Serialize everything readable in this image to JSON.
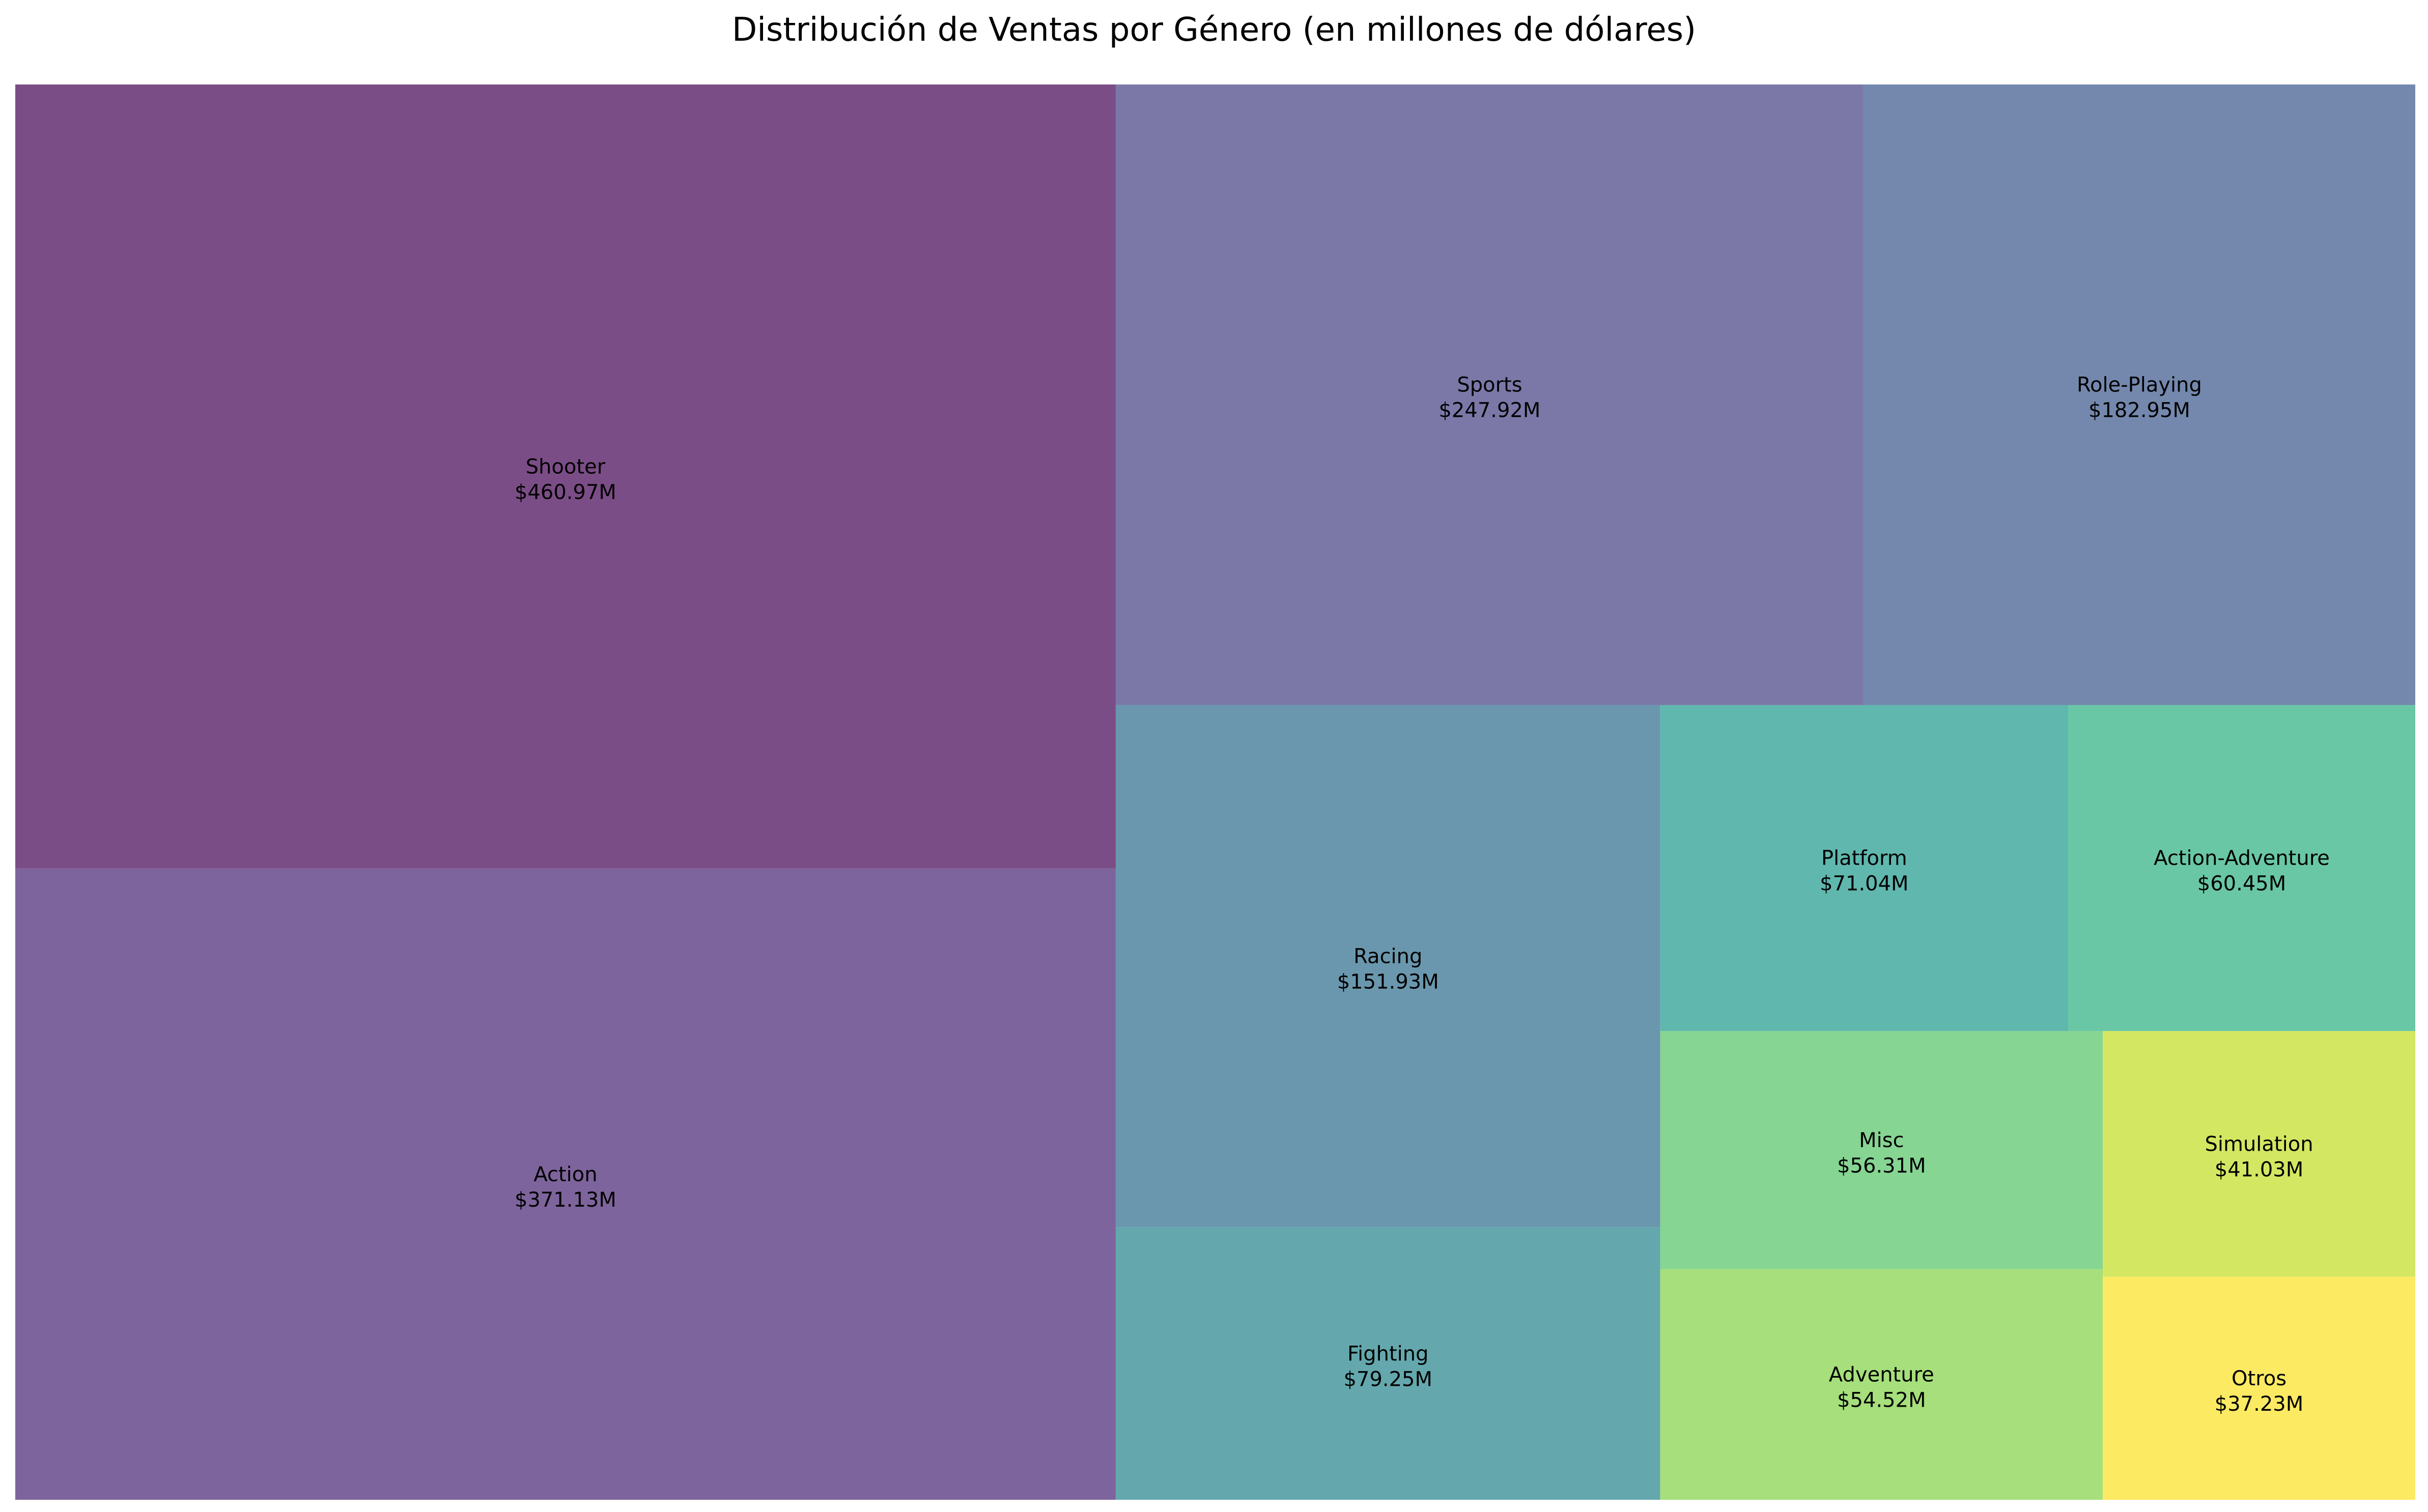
{
  "chart_data": {
    "type": "treemap",
    "title": "Distribución de Ventas por Género (en millones de dólares)",
    "value_prefix": "$",
    "value_suffix": "M",
    "items": [
      {
        "name": "Shooter",
        "value": 460.97,
        "value_label": "$460.97M",
        "color": "#7b4d86"
      },
      {
        "name": "Action",
        "value": 371.13,
        "value_label": "$371.13M",
        "color": "#7e649c"
      },
      {
        "name": "Sports",
        "value": 247.92,
        "value_label": "$247.92M",
        "color": "#7b78a8"
      },
      {
        "name": "Role-Playing",
        "value": 182.95,
        "value_label": "$182.95M",
        "color": "#7488ae"
      },
      {
        "name": "Racing",
        "value": 151.93,
        "value_label": "$151.93M",
        "color": "#6a97ad"
      },
      {
        "name": "Fighting",
        "value": 79.25,
        "value_label": "$79.25M",
        "color": "#64a8ad"
      },
      {
        "name": "Platform",
        "value": 71.04,
        "value_label": "$71.04M",
        "color": "#60b7ae"
      },
      {
        "name": "Action-Adventure",
        "value": 60.45,
        "value_label": "$60.45M",
        "color": "#69c7a6"
      },
      {
        "name": "Misc",
        "value": 56.31,
        "value_label": "$56.31M",
        "color": "#86d593"
      },
      {
        "name": "Adventure",
        "value": 54.52,
        "value_label": "$54.52M",
        "color": "#a6df7b"
      },
      {
        "name": "Simulation",
        "value": 41.03,
        "value_label": "$41.03M",
        "color": "#d4e762"
      },
      {
        "name": "Otros",
        "value": 37.23,
        "value_label": "$37.23M",
        "color": "#fdea63"
      }
    ]
  }
}
